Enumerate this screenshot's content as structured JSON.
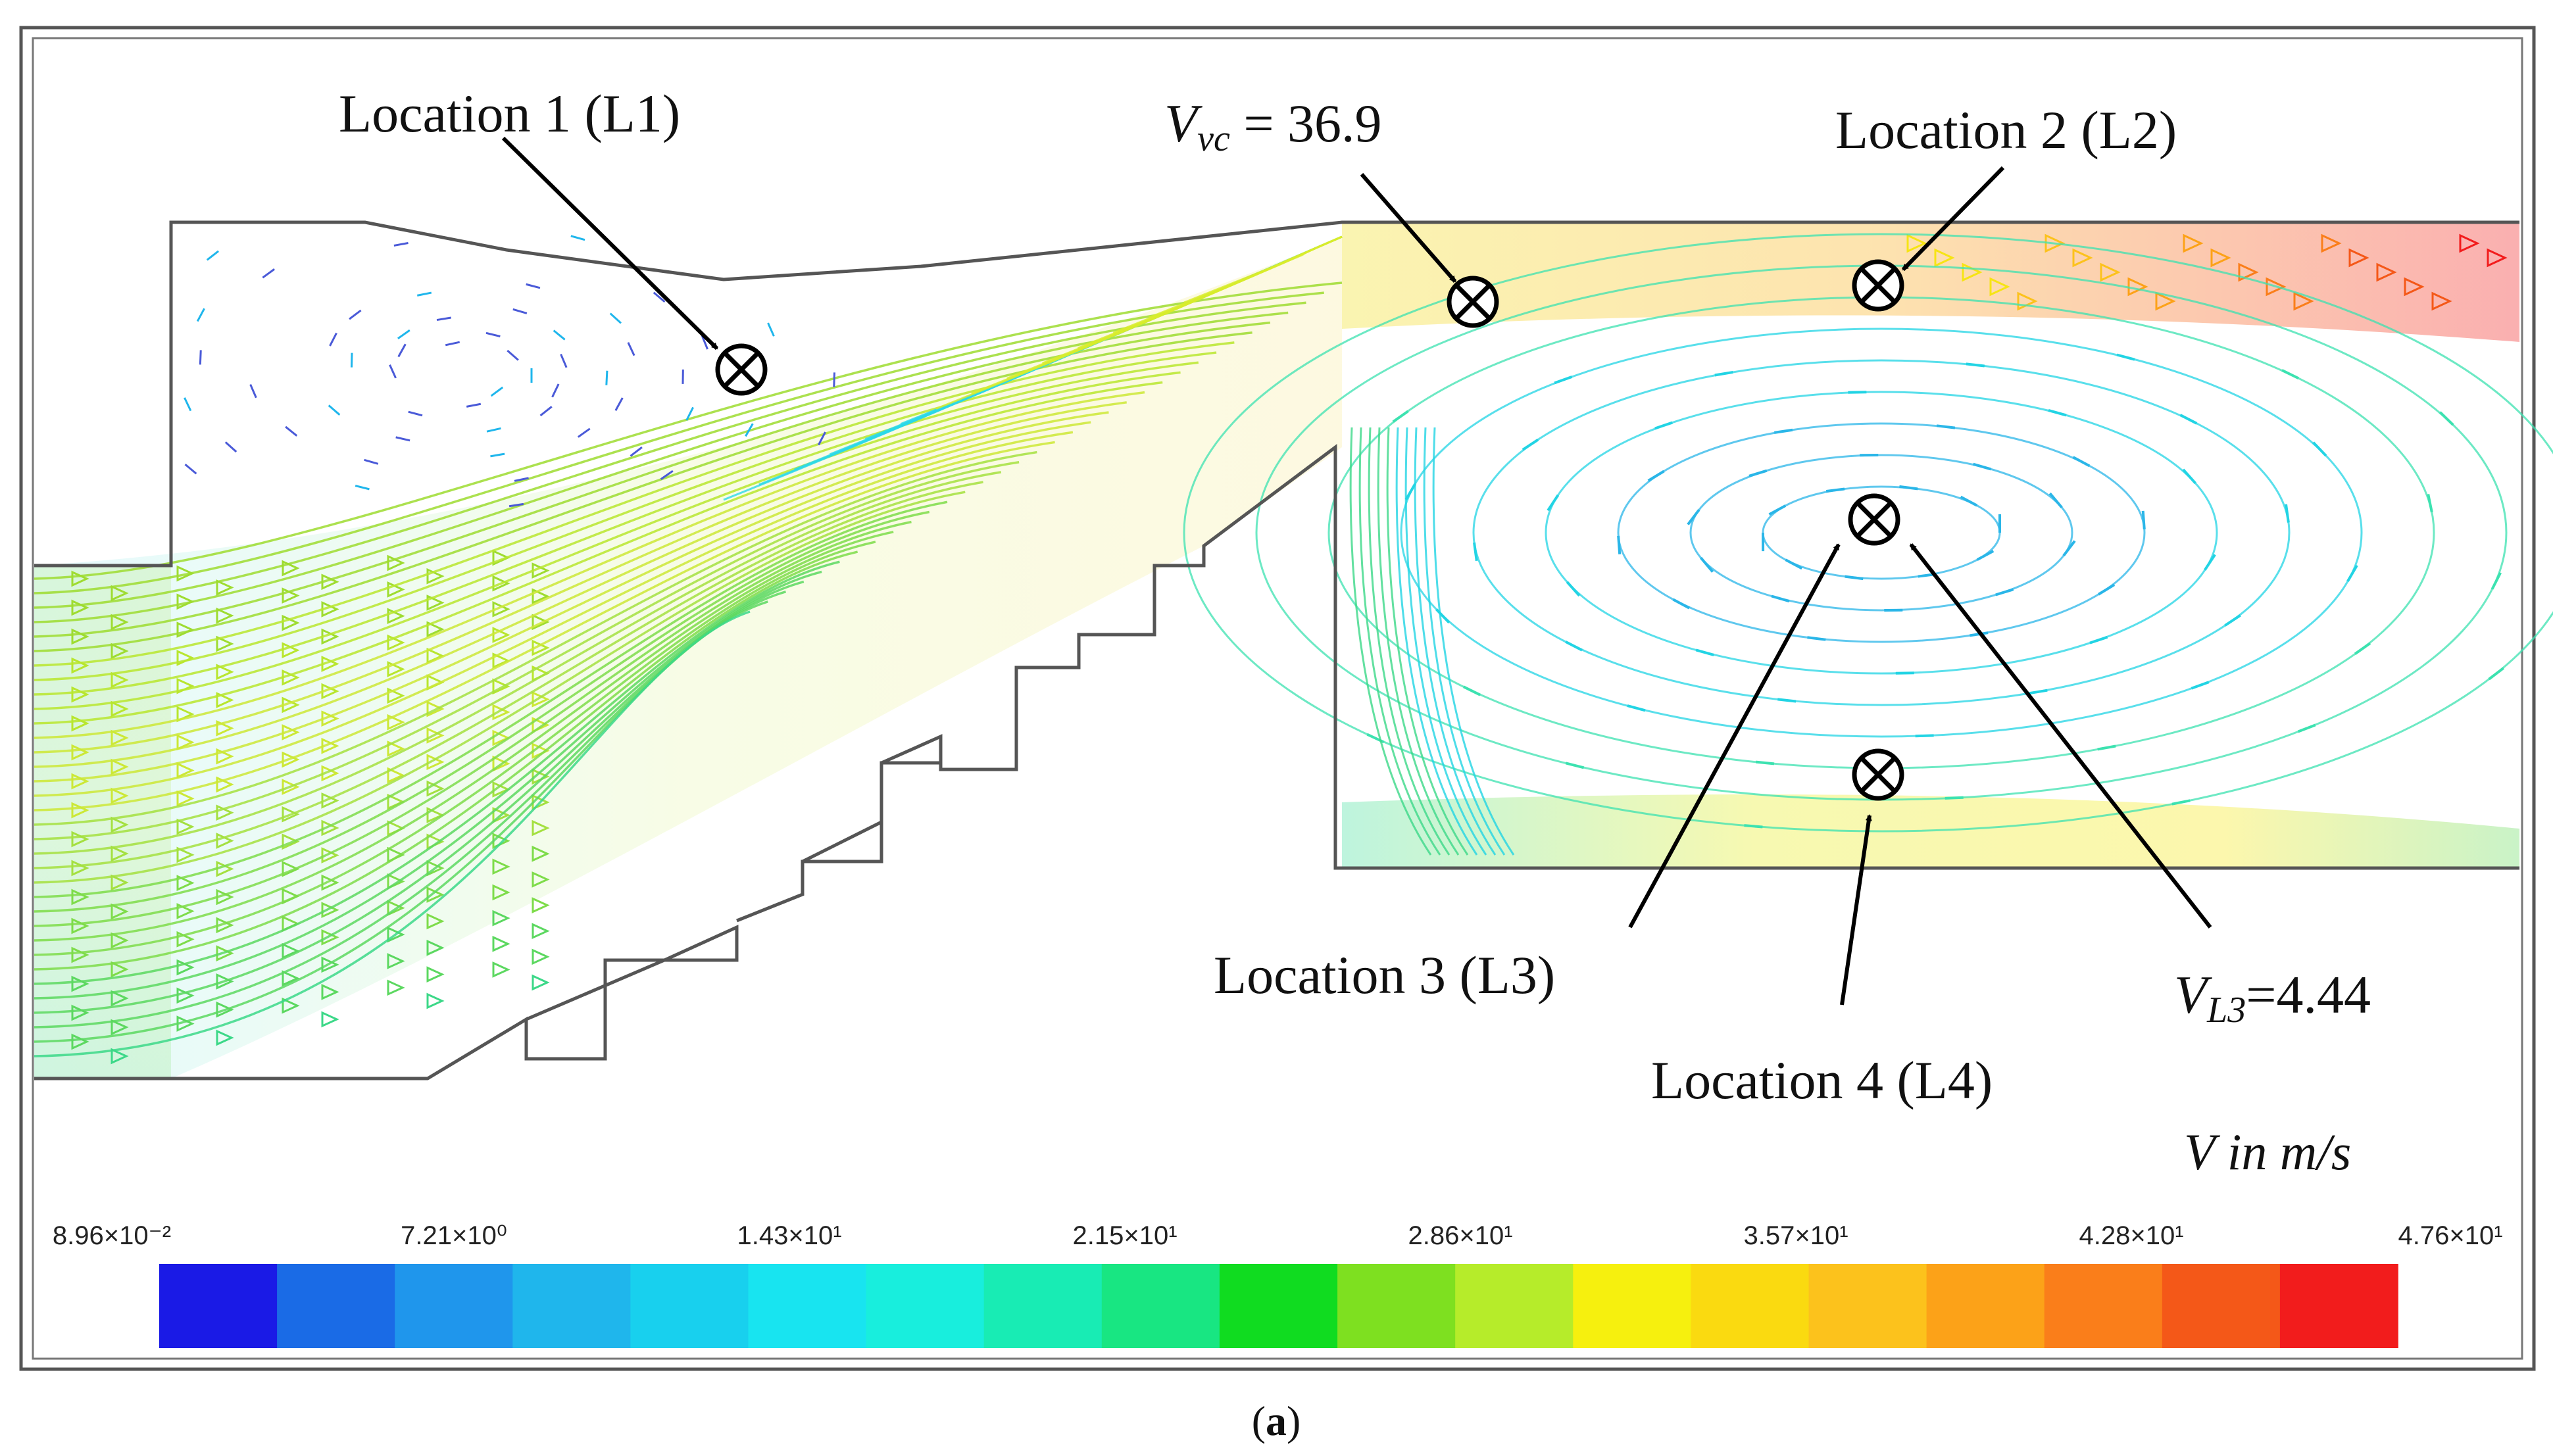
{
  "labels": {
    "location1": "Location 1 (L1)",
    "location2": "Location 2 (L2)",
    "location3": "Location 3 (L3)",
    "location4": "Location 4 (L4)",
    "vvc_symbol": "V",
    "vvc_subscript": "vc",
    "vvc_value": " = 36.9",
    "vl3_symbol": "V",
    "vl3_subscript": "L3",
    "vl3_value": "=4.44",
    "units": "V in m/s",
    "caption_open": "(",
    "caption_letter": "a",
    "caption_close": ")"
  },
  "colorbar": {
    "tick_labels": [
      "8.96×10⁻²",
      "7.21×10⁰",
      "1.43×10¹",
      "2.15×10¹",
      "2.86×10¹",
      "3.57×10¹",
      "4.28×10¹",
      "4.76×10¹"
    ],
    "colors": [
      "#1a1ae6",
      "#1a6be6",
      "#1f96ec",
      "#1fb6ec",
      "#18d0ee",
      "#18e4f0",
      "#18eedd",
      "#18ecb4",
      "#18e682",
      "#10dc20",
      "#7ee020",
      "#b6ec2a",
      "#f6f00e",
      "#fada10",
      "#fcc21c",
      "#fca218",
      "#fa7e1a",
      "#f45818",
      "#f21c1c"
    ]
  }
}
